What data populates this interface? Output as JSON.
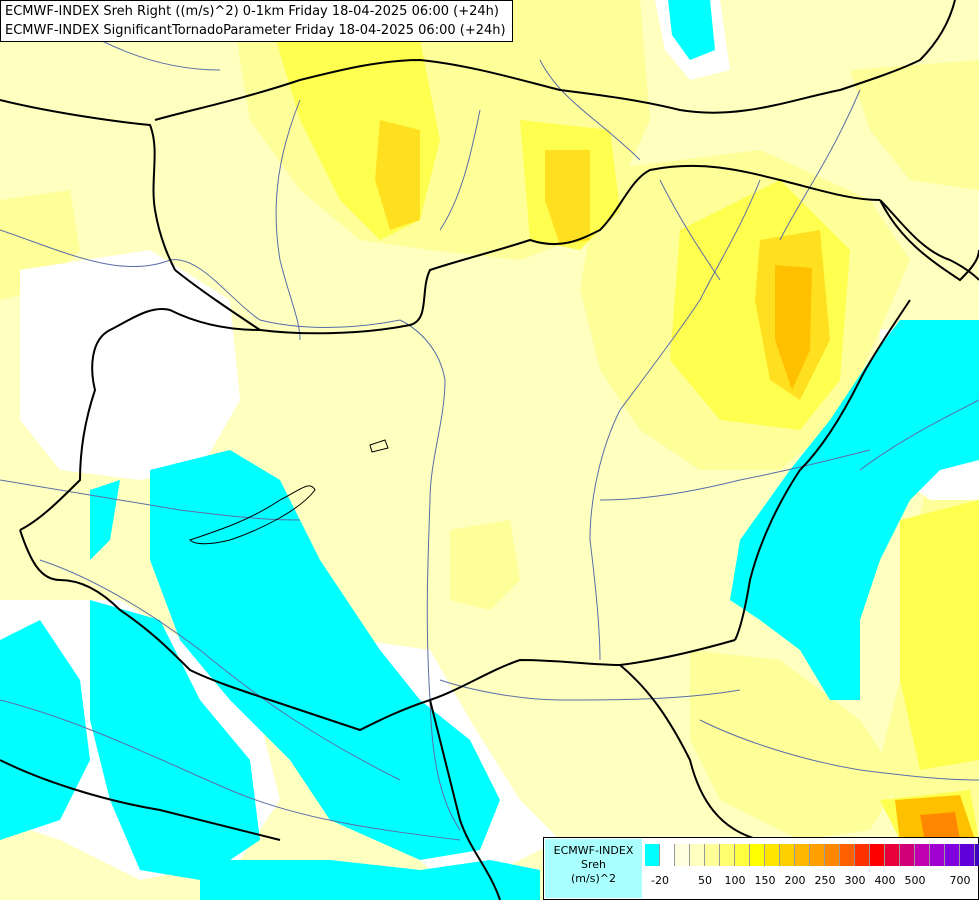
{
  "titles": [
    "ECMWF-INDEX Sreh Right ((m/s)^2) 0-1km Friday 18-04-2025 06:00 (+24h)",
    "ECMWF-INDEX SignificantTornadoParameter Friday 18-04-2025 06:00 (+24h)"
  ],
  "colors": {
    "cyan": "#00ffff",
    "white": "#ffffff",
    "pale_yellow": "#ffffc0",
    "light_yellow": "#ffff99",
    "yellow": "#ffff50",
    "gold": "#ffe020",
    "orange": "#ffc000",
    "dark_orange": "#ff8800",
    "red_orange": "#ff5000",
    "border": "#000000",
    "river": "#5a6ea8"
  },
  "legend": {
    "label_lines": [
      "ECMWF-INDEX",
      "Sreh",
      "(m/s)^2"
    ],
    "swatch_colors": [
      "#00ffff",
      "#ffffff",
      "#ffffe0",
      "#ffffc0",
      "#ffff99",
      "#ffff70",
      "#ffff40",
      "#ffff00",
      "#ffe600",
      "#ffd000",
      "#ffb800",
      "#ffa000",
      "#ff8800",
      "#ff6000",
      "#ff3000",
      "#ff0000",
      "#e8003c",
      "#d00078",
      "#c000b0",
      "#a000d0",
      "#8000e0",
      "#6000d8",
      "#4000c0",
      "#2000a0",
      "#000080"
    ],
    "ticks": [
      "-20",
      "50",
      "100",
      "150",
      "200",
      "250",
      "300",
      "400",
      "500",
      "700"
    ]
  }
}
